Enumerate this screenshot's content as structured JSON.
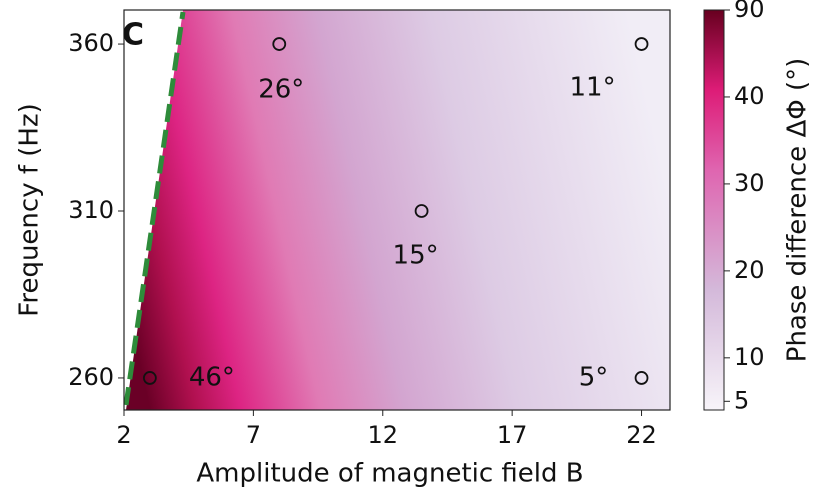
{
  "chart_data": {
    "type": "heatmap",
    "panel_label": "C",
    "xlabel": "Amplitude of magnetic field B",
    "ylabel": "Frequency f (Hz)",
    "colorbar_label": "Phase difference ΔΦ (°)",
    "x": [
      3,
      8,
      13.5,
      22,
      22
    ],
    "y": [
      260,
      360,
      310,
      360,
      260
    ],
    "values": [
      46,
      26,
      15,
      11,
      5
    ],
    "value_labels": [
      "46°",
      "26°",
      "15°",
      "11°",
      "5°"
    ],
    "xlim": [
      2,
      23.1
    ],
    "xticks": [
      2,
      7,
      12,
      17,
      22
    ],
    "ylim": [
      250.4,
      370.2
    ],
    "yticks": [
      260,
      310,
      360
    ],
    "clim": [
      4,
      90
    ],
    "cticks": [
      5,
      10,
      20,
      30,
      40,
      90
    ]
  }
}
